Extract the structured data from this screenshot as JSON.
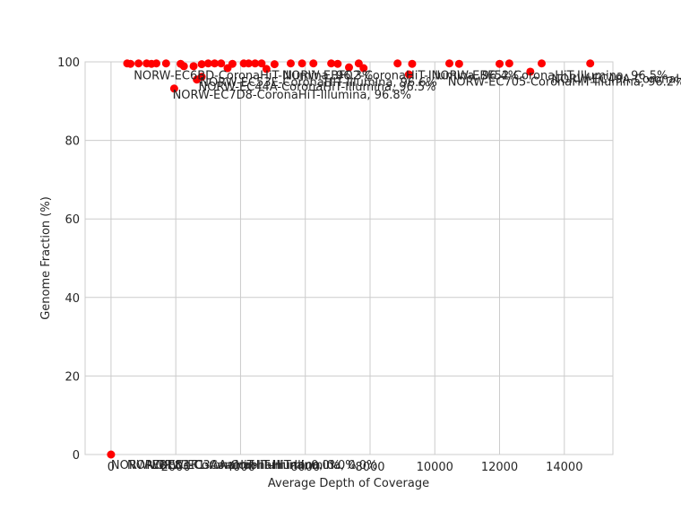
{
  "chart_data": {
    "type": "scatter",
    "title": "",
    "xlabel": "Average Depth of Coverage",
    "ylabel": "Genome Fraction (%)",
    "xlim": [
      -800,
      15500
    ],
    "ylim": [
      0,
      100
    ],
    "xticks": [
      0,
      2000,
      4000,
      6000,
      8000,
      10000,
      12000,
      14000
    ],
    "yticks": [
      0,
      20,
      40,
      60,
      80,
      100
    ],
    "grid": true,
    "point_color": "#ff0000",
    "points": [
      {
        "x": 0,
        "y": 0
      },
      {
        "x": 500,
        "y": 99.6
      },
      {
        "x": 600,
        "y": 99.5
      },
      {
        "x": 850,
        "y": 99.6
      },
      {
        "x": 1100,
        "y": 99.6
      },
      {
        "x": 1250,
        "y": 99.5
      },
      {
        "x": 1400,
        "y": 99.6
      },
      {
        "x": 1700,
        "y": 99.6
      },
      {
        "x": 1950,
        "y": 93.2
      },
      {
        "x": 2150,
        "y": 99.5
      },
      {
        "x": 2250,
        "y": 98.9
      },
      {
        "x": 2550,
        "y": 98.9
      },
      {
        "x": 2650,
        "y": 95.5
      },
      {
        "x": 2800,
        "y": 99.4
      },
      {
        "x": 2800,
        "y": 96.2
      },
      {
        "x": 3000,
        "y": 99.6
      },
      {
        "x": 3200,
        "y": 99.6
      },
      {
        "x": 3400,
        "y": 99.6
      },
      {
        "x": 3600,
        "y": 98.4
      },
      {
        "x": 3750,
        "y": 99.5
      },
      {
        "x": 4100,
        "y": 99.6
      },
      {
        "x": 4250,
        "y": 99.6
      },
      {
        "x": 4450,
        "y": 99.6
      },
      {
        "x": 4650,
        "y": 99.6
      },
      {
        "x": 4800,
        "y": 98.2
      },
      {
        "x": 5050,
        "y": 99.4
      },
      {
        "x": 5550,
        "y": 99.6
      },
      {
        "x": 5900,
        "y": 99.6
      },
      {
        "x": 6250,
        "y": 99.6
      },
      {
        "x": 6800,
        "y": 99.6
      },
      {
        "x": 7000,
        "y": 99.5
      },
      {
        "x": 7350,
        "y": 98.6
      },
      {
        "x": 7650,
        "y": 99.6
      },
      {
        "x": 7800,
        "y": 98.4
      },
      {
        "x": 8850,
        "y": 99.6
      },
      {
        "x": 9200,
        "y": 96.8
      },
      {
        "x": 9300,
        "y": 99.5
      },
      {
        "x": 10450,
        "y": 99.6
      },
      {
        "x": 10750,
        "y": 99.5
      },
      {
        "x": 12000,
        "y": 99.5
      },
      {
        "x": 12300,
        "y": 99.6
      },
      {
        "x": 12950,
        "y": 97.5
      },
      {
        "x": 13300,
        "y": 99.6
      },
      {
        "x": 14800,
        "y": 99.6
      }
    ],
    "annotations": [
      {
        "text": "NORW-EC7D8-CoronaHiT-Illumina, 96.8%",
        "x": 1900,
        "y": 90.6
      },
      {
        "text": "NORW-EC44A-CoronaHiT-Illumina, 96.5%",
        "x": 2700,
        "y": 92.7
      },
      {
        "text": "NORW-EC53E-CoronaHiT-Illumina, 96.6%",
        "x": 2750,
        "y": 93.8
      },
      {
        "text": "NORW-EC705-CoronaHiT-Illumina, 96.2%",
        "x": 10400,
        "y": 93.9
      },
      {
        "text": "NORW-EC6BD-CoronaHiT-Illumina, 96.3%",
        "x": 700,
        "y": 95.6
      },
      {
        "text": "NORW-EBF02-CoronaHiT-Illumina, 96.4%",
        "x": 5300,
        "y": 95.6
      },
      {
        "text": "NORW-EBF52-CoronaHiT-Illumina, 96.5%",
        "x": 9900,
        "y": 95.6
      },
      {
        "text": "NORW-EC49A-CoronaHiT-Illumina, 96.0%",
        "x": 13600,
        "y": 94.6
      },
      {
        "text": "NORW-EBE83-CoronaHiT-Illumina, 0.0%",
        "x": 0,
        "y": -3.7
      },
      {
        "text": "NORW-EC1F1-CoronaHiT-Illumina, 0.0%",
        "x": 500,
        "y": -3.7
      },
      {
        "text": "NORW-EC3AA-CoronaHiT-Illumina, 0.0%",
        "x": 1100,
        "y": -3.7
      }
    ]
  }
}
